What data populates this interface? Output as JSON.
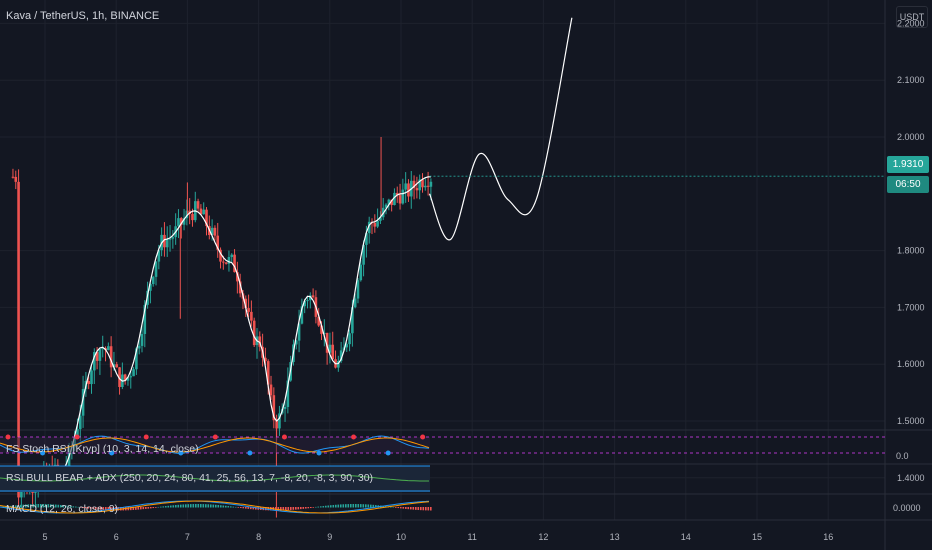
{
  "header": {
    "title": "Kava / TetherUS, 1h, BINANCE",
    "currency": "USDT"
  },
  "price_axis": {
    "ticks": [
      "2.2000",
      "2.1000",
      "2.0000",
      "1.8000",
      "1.7000",
      "1.6000",
      "1.5000",
      "1.4000"
    ],
    "last_price": "1.9310",
    "countdown": "06:50"
  },
  "indicators": {
    "stoch": {
      "label": "FS Stoch RSI [Kryp] (10, 3, 14, 14, close)",
      "axis": "0.0"
    },
    "rsi": {
      "label": "RSI BULL BEAR + ADX (250, 20, 24, 80, 41, 25, 56, 13, 7, -8, 20, -8, 3, 90, 30)"
    },
    "macd": {
      "label": "MACD (12, 26, close, 9)",
      "axis": "0.0000"
    }
  },
  "time_axis": [
    "5",
    "6",
    "7",
    "8",
    "9",
    "10",
    "11",
    "12",
    "13",
    "14",
    "15",
    "16"
  ],
  "colors": {
    "up": "#26a69a",
    "down": "#ef5350",
    "background": "#131722",
    "grid": "#1e222d",
    "line": "#ffffff"
  },
  "chart_data": {
    "type": "candlestick",
    "symbol": "Kava / TetherUS",
    "interval": "1h",
    "exchange": "BINANCE",
    "ylim": [
      1.33,
      2.25
    ],
    "x_ticks": [
      "5",
      "6",
      "7",
      "8",
      "9",
      "10",
      "11",
      "12",
      "13",
      "14",
      "15",
      "16"
    ],
    "last_price": 1.931,
    "key_points": [
      {
        "day": 4.6,
        "price": 1.38
      },
      {
        "day": 5.2,
        "price": 1.41
      },
      {
        "day": 5.8,
        "price": 1.63
      },
      {
        "day": 6.1,
        "price": 1.57
      },
      {
        "day": 6.7,
        "price": 1.82
      },
      {
        "day": 7.1,
        "price": 1.87
      },
      {
        "day": 7.6,
        "price": 1.78
      },
      {
        "day": 8.0,
        "price": 1.64
      },
      {
        "day": 8.25,
        "price": 1.5
      },
      {
        "day": 8.7,
        "price": 1.72
      },
      {
        "day": 9.1,
        "price": 1.6
      },
      {
        "day": 9.6,
        "price": 1.85
      },
      {
        "day": 10.0,
        "price": 1.9
      },
      {
        "day": 10.4,
        "price": 1.93
      }
    ],
    "projection": [
      {
        "day": 10.4,
        "price": 1.9
      },
      {
        "day": 10.7,
        "price": 1.82
      },
      {
        "day": 11.1,
        "price": 1.97
      },
      {
        "day": 11.5,
        "price": 1.89
      },
      {
        "day": 11.9,
        "price": 1.89
      },
      {
        "day": 12.4,
        "price": 2.21
      }
    ]
  }
}
